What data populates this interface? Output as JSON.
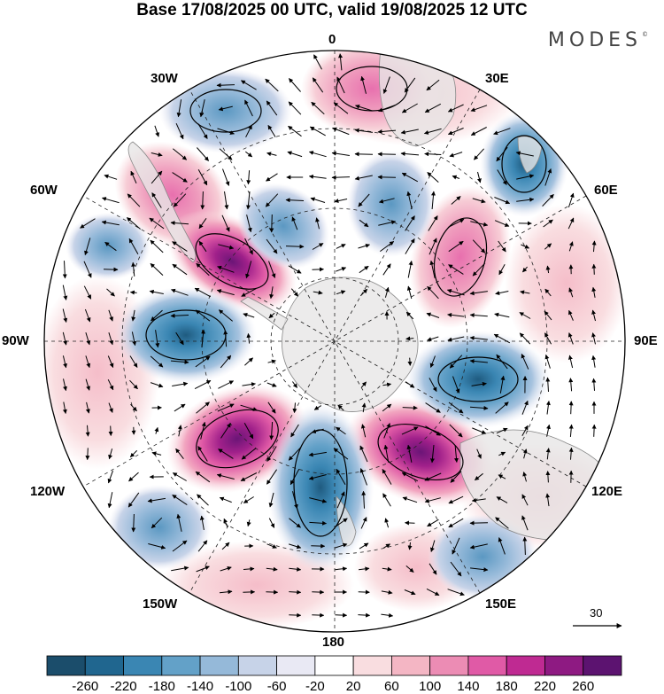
{
  "title": "Base 17/08/2025 00 UTC, valid 19/08/2025 12 UTC",
  "brand": "MODES",
  "brand_mark": "©",
  "longitude_labels": {
    "lon_0": "0",
    "lon_30e": "30E",
    "lon_60e": "60E",
    "lon_90e": "90E",
    "lon_120e": "120E",
    "lon_150e": "150E",
    "lon_180": "180",
    "lon_150w": "150W",
    "lon_120w": "120W",
    "lon_90w": "90W",
    "lon_60w": "60W",
    "lon_30w": "30W"
  },
  "reference_vector": "30",
  "colorbar": {
    "colors": [
      "#1b4d6b",
      "#20668f",
      "#3a86b3",
      "#63a1c8",
      "#95b9d9",
      "#c7d3e8",
      "#e9e9f4",
      "#ffffff",
      "#f9dde0",
      "#f4b6c4",
      "#ec8cb4",
      "#e05aa6",
      "#bf2a92",
      "#8e1a82",
      "#5c1370"
    ],
    "labels": [
      "-260",
      "-220",
      "-180",
      "-140",
      "-100",
      "-60",
      "-20",
      "20",
      "60",
      "100",
      "140",
      "180",
      "220",
      "260"
    ]
  },
  "colors": {
    "land": "#e7e6e6",
    "coast": "#888888"
  }
}
